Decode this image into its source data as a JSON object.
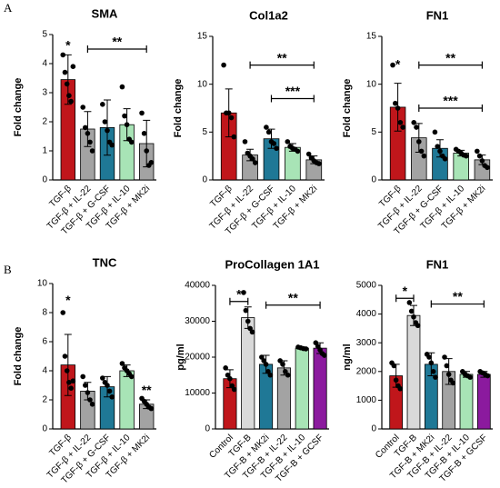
{
  "panels": [
    "A",
    "B"
  ],
  "chart_data": [
    {
      "type": "bar",
      "title": "SMA",
      "ylabel": "Fold change",
      "categories": [
        "TGF-β",
        "TGF-β + IL-22",
        "TGF-β + G-CSF",
        "TGF-β + IL-10",
        "TGF-β + MK2i"
      ],
      "colors": [
        "#c0161b",
        "#a3a3a3",
        "#1f7896",
        "#a8e4b6",
        "#a3a3a3"
      ],
      "values": [
        3.45,
        1.75,
        1.8,
        1.9,
        1.25
      ],
      "errors": [
        0.85,
        0.6,
        0.95,
        0.55,
        0.8
      ],
      "points": [
        [
          4.3,
          3.7,
          3.3,
          2.9,
          2.7,
          3.9
        ],
        [
          2.5,
          1.8,
          1.6,
          1.3,
          1.0
        ],
        [
          2.6,
          2.0,
          1.7,
          1.3,
          1.2
        ],
        [
          3.2,
          2.2,
          1.9,
          1.4,
          1.3
        ],
        [
          2.3,
          1.6,
          1.0,
          0.5,
          0.6
        ]
      ],
      "ylim": [
        0,
        5
      ],
      "yticks": [
        0,
        1,
        2,
        3,
        4,
        5
      ],
      "annotations": [
        {
          "text": "*",
          "from": 0,
          "to": 0,
          "y": 4.6
        },
        {
          "text": "**",
          "from": 1,
          "to": 4,
          "y": 4.5
        }
      ]
    },
    {
      "type": "bar",
      "title": "Col1a2",
      "ylabel": "Fold change",
      "categories": [
        "TGF-β",
        "TGF-β + IL-22",
        "TGF-β + G-CSF",
        "TGF-β + IL-10",
        "TGF-β + MK2i"
      ],
      "colors": [
        "#c0161b",
        "#a3a3a3",
        "#1f7896",
        "#a8e4b6",
        "#a3a3a3"
      ],
      "values": [
        7.0,
        2.6,
        4.3,
        3.4,
        2.1
      ],
      "errors": [
        2.5,
        0.6,
        1.0,
        0.4,
        0.4
      ],
      "points": [
        [
          12,
          7,
          7,
          6.5,
          4.5
        ],
        [
          4,
          2.8,
          2.5,
          2.2,
          1.8
        ],
        [
          5.5,
          5,
          4,
          3.8,
          3.3
        ],
        [
          4,
          3.5,
          3.3,
          3.2,
          3
        ],
        [
          2.7,
          2.3,
          2,
          1.8,
          1.7
        ]
      ],
      "ylim": [
        0,
        15
      ],
      "yticks": [
        0,
        5,
        10,
        15
      ],
      "annotations": [
        {
          "text": "**",
          "from": 1,
          "to": 4,
          "y": 12
        },
        {
          "text": "***",
          "from": 2,
          "to": 4,
          "y": 8.5
        }
      ]
    },
    {
      "type": "bar",
      "title": "FN1",
      "ylabel": "Fold change",
      "categories": [
        "TGF-β",
        "TGF-β + IL-22",
        "TGF-β + G-CSF",
        "TGF-β + IL-10",
        "TGF-β + MK2i"
      ],
      "colors": [
        "#c0161b",
        "#a3a3a3",
        "#1f7896",
        "#a8e4b6",
        "#a3a3a3"
      ],
      "values": [
        7.6,
        4.4,
        3.3,
        2.8,
        2.1
      ],
      "errors": [
        2.5,
        1.5,
        0.9,
        0.3,
        0.5
      ],
      "points": [
        [
          12,
          8,
          7.5,
          6,
          5.5
        ],
        [
          6,
          5.5,
          4,
          3,
          2.5
        ],
        [
          5,
          3.5,
          3,
          2.5,
          2.2
        ],
        [
          3.2,
          3,
          2.8,
          2.6,
          2.5
        ],
        [
          3,
          2.5,
          2,
          1.5,
          1.3
        ]
      ],
      "ylim": [
        0,
        15
      ],
      "yticks": [
        0,
        5,
        10,
        15
      ],
      "annotations": [
        {
          "text": "*",
          "from": 0,
          "to": 0,
          "y": 12
        },
        {
          "text": "**",
          "from": 1,
          "to": 4,
          "y": 12
        },
        {
          "text": "***",
          "from": 1,
          "to": 4,
          "y": 7.5
        }
      ]
    },
    {
      "type": "bar",
      "title": "TNC",
      "ylabel": "Fold change",
      "categories": [
        "TGF-β",
        "TGF-β + IL-22",
        "TGF-β + G-CSF",
        "TGF-β + IL-10",
        "TGF-β + MK2i"
      ],
      "colors": [
        "#c0161b",
        "#a3a3a3",
        "#1f7896",
        "#a8e4b6",
        "#a3a3a3"
      ],
      "values": [
        4.4,
        2.6,
        2.9,
        4.0,
        1.7
      ],
      "errors": [
        2.1,
        0.6,
        0.7,
        0.4,
        0.3
      ],
      "points": [
        [
          8,
          5,
          4,
          3.2,
          2.8,
          3.3
        ],
        [
          3.6,
          3,
          2.5,
          2,
          1.7
        ],
        [
          3.5,
          3.2,
          3,
          2.6,
          2.2
        ],
        [
          4.5,
          4.2,
          4,
          3.8,
          3.6
        ],
        [
          2.1,
          1.9,
          1.7,
          1.5,
          1.4
        ]
      ],
      "ylim": [
        0,
        10
      ],
      "yticks": [
        0,
        2,
        4,
        6,
        8,
        10
      ],
      "annotations": [
        {
          "text": "*",
          "from": 0,
          "to": 0,
          "y": 8.8
        },
        {
          "text": "**",
          "from": 4,
          "to": 4,
          "y": 2.6
        }
      ]
    },
    {
      "type": "bar",
      "title": "ProCollagen 1A1",
      "ylabel": "pg/ml",
      "categories": [
        "Control",
        "TGF-B",
        "TGF-B + MK2i",
        "TGF-B + IL-22",
        "TGF-B + IL-10",
        "TGF-B + GCSF"
      ],
      "colors": [
        "#c0161b",
        "#d9d9d9",
        "#1f7896",
        "#a3a3a3",
        "#a8e4b6",
        "#8b1a9e"
      ],
      "values": [
        14000,
        31000,
        18000,
        17000,
        22500,
        22500
      ],
      "errors": [
        2500,
        3000,
        2500,
        2000,
        300,
        1500
      ],
      "points": [
        [
          17000,
          15000,
          14000,
          12000,
          11000
        ],
        [
          38000,
          33000,
          30000,
          28000,
          27000
        ],
        [
          20000,
          19000,
          18000,
          16000,
          15000
        ],
        [
          19000,
          18000,
          16000,
          15000
        ],
        [
          22800,
          22600,
          22400,
          22300
        ],
        [
          24000,
          23000,
          22000,
          21000,
          20500
        ]
      ],
      "ylim": [
        0,
        40000
      ],
      "yticks": [
        0,
        10000,
        20000,
        30000,
        40000
      ],
      "annotations": [
        {
          "text": "*",
          "from": 0,
          "to": 1,
          "y": 35500
        },
        {
          "text": "**",
          "from": 2,
          "to": 5,
          "y": 34500
        }
      ]
    },
    {
      "type": "bar",
      "title": "FN1",
      "ylabel": "ng/ml",
      "categories": [
        "Control",
        "TGF-B",
        "TGF-B + MK2i",
        "TGF-B + IL-22",
        "TGF-B + IL-10",
        "TGF-B + GCSF"
      ],
      "colors": [
        "#c0161b",
        "#d9d9d9",
        "#1f7896",
        "#a3a3a3",
        "#a8e4b6",
        "#8b1a9e"
      ],
      "values": [
        1850,
        3950,
        2250,
        2000,
        1900,
        1900
      ],
      "errors": [
        400,
        350,
        400,
        450,
        100,
        100
      ],
      "points": [
        [
          2300,
          2200,
          1700,
          1500,
          1400
        ],
        [
          4400,
          4100,
          3900,
          3700,
          3600
        ],
        [
          2600,
          2500,
          2300,
          2000,
          1800
        ],
        [
          2500,
          2200,
          1900,
          1700,
          1600
        ],
        [
          2000,
          1900,
          1850,
          1800
        ],
        [
          2000,
          1950,
          1900,
          1850
        ]
      ],
      "ylim": [
        0,
        5000
      ],
      "yticks": [
        0,
        1000,
        2000,
        3000,
        4000,
        5000
      ],
      "annotations": [
        {
          "text": "*",
          "from": 0,
          "to": 1,
          "y": 4550
        },
        {
          "text": "**",
          "from": 2,
          "to": 5,
          "y": 4350
        }
      ]
    }
  ]
}
